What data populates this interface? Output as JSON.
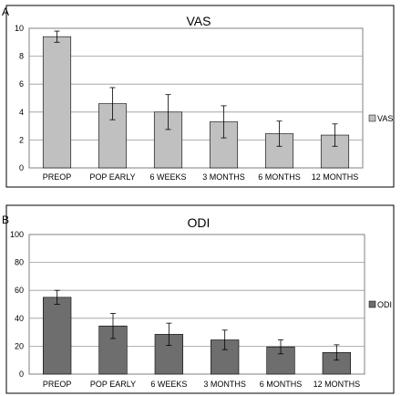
{
  "chart_data": [
    {
      "type": "bar",
      "panel_label": "A",
      "title": "VAS",
      "categories": [
        "PREOP",
        "POP EARLY",
        "6 WEEKS",
        "3 MONTHS",
        "6 MONTHS",
        "12 MONTHS"
      ],
      "series": [
        {
          "name": "VAS",
          "values": [
            9.4,
            4.6,
            4.0,
            3.3,
            2.45,
            2.35
          ],
          "error": [
            0.4,
            1.15,
            1.25,
            1.15,
            0.9,
            0.8
          ]
        }
      ],
      "ylim": [
        0,
        10
      ],
      "yticks": [
        0,
        2,
        4,
        6,
        8,
        10
      ],
      "grid": true,
      "legend_position": "right",
      "colors": {
        "bar": "#c0c0c0",
        "plot_bg": "#ffffff",
        "grid": "#999999"
      }
    },
    {
      "type": "bar",
      "panel_label": "B",
      "title": "ODI",
      "categories": [
        "PREOP",
        "POP EARLY",
        "6 WEEKS",
        "3 MONTHS",
        "6 MONTHS",
        "12 MONTHS"
      ],
      "series": [
        {
          "name": "ODI",
          "values": [
            55,
            34.5,
            28.5,
            24.5,
            19.5,
            15.5
          ],
          "error": [
            5,
            9,
            8,
            7,
            5,
            5.5
          ]
        }
      ],
      "ylim": [
        0,
        100
      ],
      "yticks": [
        0,
        20,
        40,
        60,
        80,
        100
      ],
      "grid": true,
      "legend_position": "right",
      "colors": {
        "bar": "#6e6e6e",
        "plot_bg": "#ffffff",
        "grid": "#999999"
      }
    }
  ]
}
